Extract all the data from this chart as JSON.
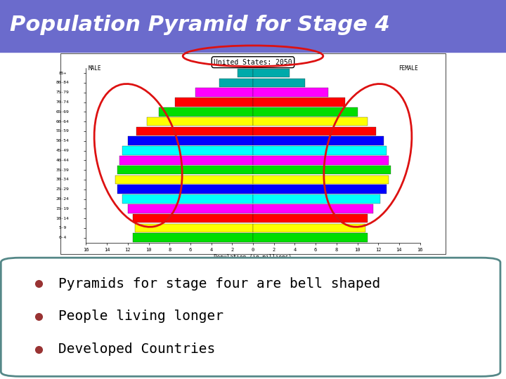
{
  "title": "Population Pyramid for Stage 4",
  "title_bg": "#6b6bcc",
  "title_color": "#ffffff",
  "title_fontsize": 22,
  "pyramid_title": "United States: 2050",
  "age_groups": [
    "0-4",
    "5-9",
    "10-14",
    "15-19",
    "20-24",
    "25-29",
    "30-34",
    "35-39",
    "40-44",
    "45-49",
    "50-54",
    "55-59",
    "60-64",
    "65-69",
    "70-74",
    "75-79",
    "80-84",
    "85+"
  ],
  "male_values": [
    11.5,
    11.3,
    11.5,
    12.0,
    12.5,
    13.0,
    13.2,
    13.0,
    12.8,
    12.5,
    12.0,
    11.2,
    10.2,
    9.0,
    7.5,
    5.5,
    3.2,
    1.5
  ],
  "female_values": [
    11.0,
    10.8,
    11.0,
    11.5,
    12.2,
    12.8,
    13.0,
    13.2,
    13.0,
    12.8,
    12.5,
    11.8,
    11.0,
    10.0,
    8.8,
    7.2,
    5.0,
    3.5
  ],
  "bar_colors": [
    "#00dd00",
    "#ffff00",
    "#ff0000",
    "#ff00ff",
    "#00ffff",
    "#0000ff",
    "#ffff00",
    "#00dd00",
    "#ff00ff",
    "#00ffff",
    "#0000ff",
    "#ff0000",
    "#ffff00",
    "#00dd00",
    "#ff0000",
    "#ff00ff",
    "#00aaaa",
    "#00aaaa"
  ],
  "bullet_color": "#993333",
  "bullet_points": [
    "Pyramids for stage four are bell shaped",
    "People living longer",
    "Developed Countries"
  ],
  "bullet_fontsize": 14,
  "content_box_border": "#558888",
  "background_color": "#ffffff"
}
